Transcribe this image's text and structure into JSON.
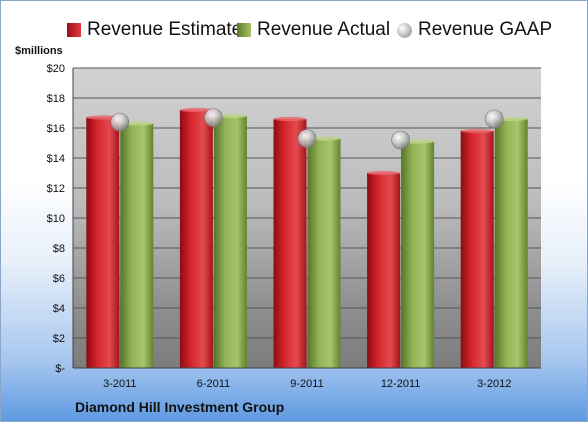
{
  "legend": {
    "estimate_label": "Revenue Estimate",
    "actual_label": "Revenue Actual",
    "gaap_label": "Revenue GAAP"
  },
  "unit_label": "$millions",
  "company": "Diamond Hill Investment Group",
  "colors": {
    "estimate": "#c8202a",
    "actual": "#8bab4e",
    "gaap": "#c8c8c8"
  },
  "chart_data": {
    "type": "bar",
    "categories": [
      "3-2011",
      "6-2011",
      "9-2011",
      "12-2011",
      "3-2012"
    ],
    "series": [
      {
        "name": "Revenue Estimate",
        "values": [
          16.7,
          17.2,
          16.6,
          13.0,
          15.8
        ]
      },
      {
        "name": "Revenue Actual",
        "values": [
          16.3,
          16.8,
          15.3,
          15.1,
          16.6
        ]
      },
      {
        "name": "Revenue GAAP",
        "values": [
          16.4,
          16.7,
          15.3,
          15.2,
          16.6
        ],
        "marker": "circle"
      }
    ],
    "y_ticks": [
      "$-",
      "$2",
      "$4",
      "$6",
      "$8",
      "$10",
      "$12",
      "$14",
      "$16",
      "$18",
      "$20"
    ],
    "ylabel": "$millions",
    "ylim": [
      0,
      20
    ],
    "grid": true,
    "legend_position": "top"
  }
}
